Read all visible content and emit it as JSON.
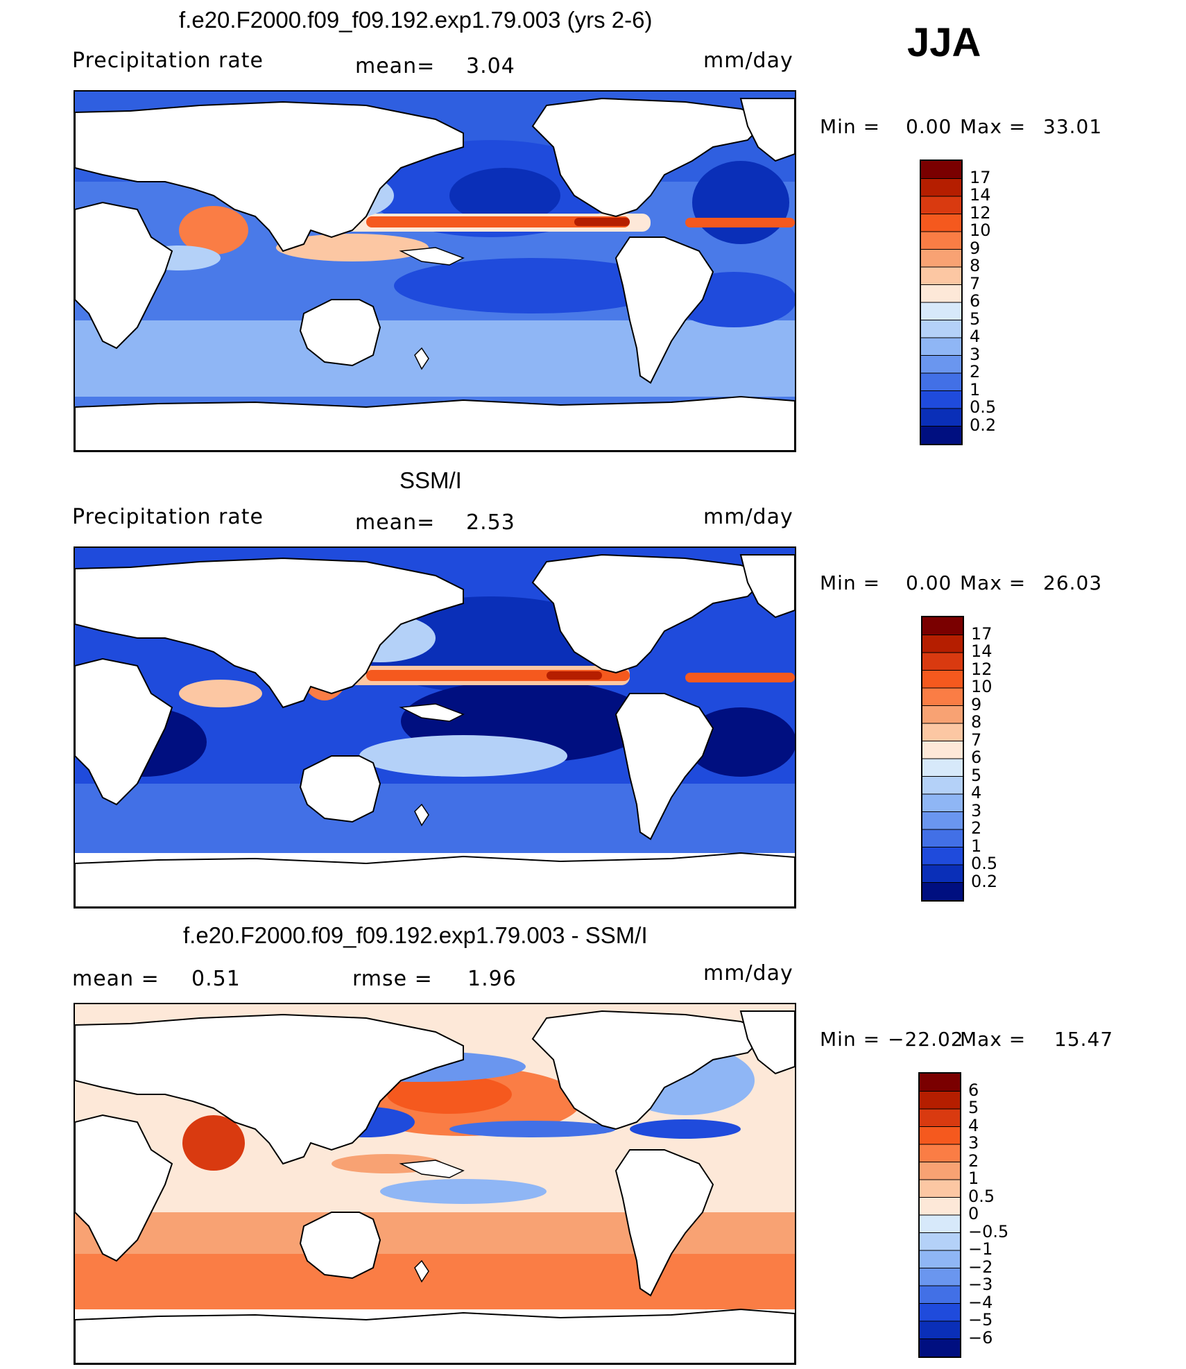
{
  "season": "JJA",
  "panels": [
    {
      "id": "model",
      "title": "f.e20.F2000.f09_f09.192.exp1.79.003 (yrs 2-6)",
      "variable": "Precipitation rate",
      "stat1_label": "mean=",
      "stat1_value": "3.04",
      "units": "mm/day",
      "minmax": {
        "min_label": "Min  =",
        "min": "0.00",
        "max_label": "Max  =",
        "max": "33.01"
      },
      "colorbar": {
        "levels": [
          "17",
          "14",
          "12",
          "10",
          "9",
          "8",
          "7",
          "6",
          "5",
          "4",
          "3",
          "2",
          "1",
          "0.5",
          "0.2"
        ],
        "colors": [
          "#7a0000",
          "#b51e00",
          "#d93a10",
          "#f5591e",
          "#fa7d45",
          "#f8a273",
          "#fcc7a3",
          "#fde8d8",
          "#d7e9fa",
          "#b4d1f8",
          "#8fb6f5",
          "#6a96ef",
          "#4270e6",
          "#1f4bdc",
          "#0a2fb8",
          "#000f80"
        ]
      },
      "chart_data": {
        "type": "heatmap",
        "projection": "global lat-lon, centered on 180",
        "field": "Precipitation rate",
        "units": "mm/day",
        "mean": 3.04,
        "min": 0.0,
        "max": 33.01,
        "features": [
          "ITCZ maxima in tropical Pacific and Atlantic (~10-17 mm/day)",
          "Indian monsoon maximum",
          "dry subtropical eastern oceans (<0.5 mm/day)"
        ]
      }
    },
    {
      "id": "obs",
      "title": "SSM/I",
      "variable": "Precipitation rate",
      "stat1_label": "mean=",
      "stat1_value": "2.53",
      "units": "mm/day",
      "minmax": {
        "min_label": "Min  =",
        "min": "0.00",
        "max_label": "Max  =",
        "max": "26.03"
      },
      "colorbar": {
        "levels": [
          "17",
          "14",
          "12",
          "10",
          "9",
          "8",
          "7",
          "6",
          "5",
          "4",
          "3",
          "2",
          "1",
          "0.5",
          "0.2"
        ],
        "colors": [
          "#7a0000",
          "#b51e00",
          "#d93a10",
          "#f5591e",
          "#fa7d45",
          "#f8a273",
          "#fcc7a3",
          "#fde8d8",
          "#d7e9fa",
          "#b4d1f8",
          "#8fb6f5",
          "#6a96ef",
          "#4270e6",
          "#1f4bdc",
          "#0a2fb8",
          "#000f80"
        ]
      },
      "chart_data": {
        "type": "heatmap",
        "projection": "global lat-lon, centered on 180",
        "field": "Precipitation rate",
        "units": "mm/day",
        "mean": 2.53,
        "min": 0.0,
        "max": 26.03,
        "features": [
          "ocean-only observations",
          "ITCZ maximum in eastern Pacific",
          "warm pool maximum in western Pacific"
        ]
      }
    },
    {
      "id": "diff",
      "title": "f.e20.F2000.f09_f09.192.exp1.79.003 - SSM/I",
      "variable": "mean  =",
      "stat1_label": "rmse  =",
      "stat1_value": "1.96",
      "mean_value": "0.51",
      "units": "mm/day",
      "minmax": {
        "min_label": "Min  =",
        "min": "−22.02",
        "max_label": "Max  =",
        "max": "15.47"
      },
      "colorbar": {
        "levels": [
          "6",
          "5",
          "4",
          "3",
          "2",
          "1",
          "0.5",
          "0",
          "−0.5",
          "−1",
          "−2",
          "−3",
          "−4",
          "−5",
          "−6"
        ],
        "colors": [
          "#7a0000",
          "#b51e00",
          "#d93a10",
          "#f5591e",
          "#fa7d45",
          "#f8a273",
          "#fcc7a3",
          "#fde8d8",
          "#d7e9fa",
          "#b4d1f8",
          "#8fb6f5",
          "#6a96ef",
          "#4270e6",
          "#1f4bdc",
          "#0a2fb8",
          "#000f80"
        ]
      },
      "chart_data": {
        "type": "heatmap",
        "projection": "global lat-lon, centered on 180",
        "field": "Precipitation difference (model - SSM/I)",
        "units": "mm/day",
        "mean": 0.51,
        "rmse": 1.96,
        "min": -22.02,
        "max": 15.47,
        "features": [
          "positive bias over Southern Ocean (+2 to +3)",
          "negative bias in western Pacific warm pool",
          "positive bias in Arabian Sea / Bay of Bengal"
        ]
      }
    }
  ]
}
